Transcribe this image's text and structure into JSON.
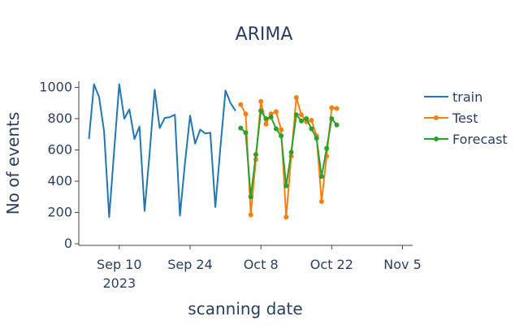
{
  "chart_data": {
    "type": "line",
    "title": "ARIMA",
    "xlabel": "scanning date",
    "ylabel": "No of events",
    "x_range": [
      "2023-09-02",
      "2023-11-07"
    ],
    "ylim": [
      0,
      1060
    ],
    "grid": false,
    "legend_position": "right",
    "x_ticks": [
      {
        "date": "2023-09-10",
        "label": "Sep 10",
        "sublabel": "2023"
      },
      {
        "date": "2023-09-24",
        "label": "Sep 24",
        "sublabel": ""
      },
      {
        "date": "2023-10-08",
        "label": "Oct 8",
        "sublabel": ""
      },
      {
        "date": "2023-10-22",
        "label": "Oct 22",
        "sublabel": ""
      },
      {
        "date": "2023-11-05",
        "label": "Nov 5",
        "sublabel": ""
      }
    ],
    "y_ticks": [
      {
        "value": 0,
        "label": "0"
      },
      {
        "value": 200,
        "label": "200"
      },
      {
        "value": 400,
        "label": "400"
      },
      {
        "value": 600,
        "label": "600"
      },
      {
        "value": 800,
        "label": "800"
      },
      {
        "value": 1000,
        "label": "1000"
      }
    ],
    "series": [
      {
        "name": "train",
        "color": "#1f77b4",
        "markers": false,
        "x": [
          "2023-09-04",
          "2023-09-05",
          "2023-09-06",
          "2023-09-07",
          "2023-09-08",
          "2023-09-09",
          "2023-09-10",
          "2023-09-11",
          "2023-09-12",
          "2023-09-13",
          "2023-09-14",
          "2023-09-15",
          "2023-09-16",
          "2023-09-17",
          "2023-09-18",
          "2023-09-19",
          "2023-09-20",
          "2023-09-21",
          "2023-09-22",
          "2023-09-23",
          "2023-09-24",
          "2023-09-25",
          "2023-09-26",
          "2023-09-27",
          "2023-09-28",
          "2023-09-29",
          "2023-09-30",
          "2023-10-01",
          "2023-10-02",
          "2023-10-03"
        ],
        "values": [
          670,
          1020,
          940,
          720,
          170,
          600,
          1020,
          800,
          860,
          670,
          750,
          210,
          580,
          985,
          740,
          805,
          810,
          825,
          180,
          520,
          820,
          640,
          730,
          705,
          710,
          235,
          620,
          980,
          900,
          850
        ]
      },
      {
        "name": "Test",
        "color": "#ff7f0e",
        "markers": true,
        "x": [
          "2023-10-04",
          "2023-10-05",
          "2023-10-06",
          "2023-10-07",
          "2023-10-08",
          "2023-10-09",
          "2023-10-10",
          "2023-10-11",
          "2023-10-12",
          "2023-10-13",
          "2023-10-14",
          "2023-10-15",
          "2023-10-16",
          "2023-10-17",
          "2023-10-18",
          "2023-10-19",
          "2023-10-20",
          "2023-10-21",
          "2023-10-22",
          "2023-10-23"
        ],
        "values": [
          890,
          830,
          185,
          540,
          910,
          765,
          830,
          845,
          730,
          170,
          560,
          935,
          825,
          780,
          790,
          690,
          270,
          560,
          870,
          865
        ]
      },
      {
        "name": "Forecast",
        "color": "#2ca02c",
        "markers": true,
        "x": [
          "2023-10-04",
          "2023-10-05",
          "2023-10-06",
          "2023-10-07",
          "2023-10-08",
          "2023-10-09",
          "2023-10-10",
          "2023-10-11",
          "2023-10-12",
          "2023-10-13",
          "2023-10-14",
          "2023-10-15",
          "2023-10-16",
          "2023-10-17",
          "2023-10-18",
          "2023-10-19",
          "2023-10-20",
          "2023-10-21",
          "2023-10-22",
          "2023-10-23"
        ],
        "values": [
          740,
          710,
          300,
          570,
          850,
          800,
          810,
          735,
          690,
          370,
          585,
          825,
          785,
          800,
          735,
          675,
          430,
          610,
          800,
          760
        ]
      }
    ]
  }
}
